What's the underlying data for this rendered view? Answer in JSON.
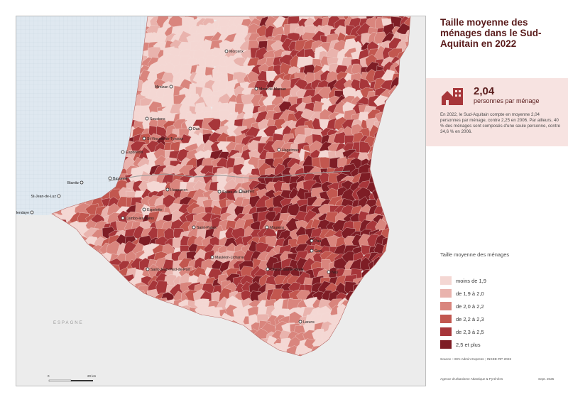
{
  "title": "Taille moyenne des ménages dans le Sud-Aquitain en 2022",
  "kpi": {
    "value": "2,04",
    "unit": "personnes par ménage",
    "text": "En 2022, le Sud-Aquitain compte en moyenne 2,04 personnes par ménage, contre 2,25 en 2006. Par ailleurs, 40 % des ménages sont composés d'une seule personne, contre 34,6 % en 2006.",
    "icon": "house-building-icon"
  },
  "legend": {
    "title": "Taille moyenne des ménages",
    "classes": [
      {
        "label": "moins de 1,9",
        "color": "#f4d7d3"
      },
      {
        "label": "de 1,9 à 2,0",
        "color": "#e9b3ad"
      },
      {
        "label": "de 2,0 à 2,2",
        "color": "#d9857d"
      },
      {
        "label": "de 2,2 à 2,3",
        "color": "#c2574f"
      },
      {
        "label": "de 2,3 à 2,5",
        "color": "#a7363a"
      },
      {
        "label": "2,5 et plus",
        "color": "#7e1d25"
      }
    ]
  },
  "source": "Source : IGN-Admin Express ; INSEE-RP 2022",
  "agency": "Agence d'urbanisme Atlantique & Pyrénées",
  "date": "Sept. 2025",
  "logo": "audap",
  "scale": {
    "start": "0",
    "end": "20 km"
  },
  "map": {
    "country_label": "ESPAGNE",
    "sea_color": "#dde7ef",
    "spain_color": "#ececec",
    "cities": [
      {
        "name": "Morcenx"
      },
      {
        "name": "Mimizan"
      },
      {
        "name": "Mont-de-Marsan"
      },
      {
        "name": "Soustons"
      },
      {
        "name": "Dax"
      },
      {
        "name": "St-Vincent-de-Tyrosse"
      },
      {
        "name": "Capbreton"
      },
      {
        "name": "Hagetmau"
      },
      {
        "name": "Bayonne"
      },
      {
        "name": "Biarritz"
      },
      {
        "name": "St-Jean-de-Luz"
      },
      {
        "name": "Hendaye"
      },
      {
        "name": "Hasparren"
      },
      {
        "name": "Salies-de-Béarn"
      },
      {
        "name": "Orthez"
      },
      {
        "name": "Cambo-les-Bains"
      },
      {
        "name": "Espelette"
      },
      {
        "name": "Saint-Palais"
      },
      {
        "name": "Mourenx"
      },
      {
        "name": "Mauléon-Licharre"
      },
      {
        "name": "Saint-Jean-Pied-de-Port"
      },
      {
        "name": "Oloron-Sainte-Marie"
      },
      {
        "name": "Pau"
      },
      {
        "name": "Gan"
      },
      {
        "name": "Nay"
      },
      {
        "name": "Laruns"
      }
    ]
  }
}
